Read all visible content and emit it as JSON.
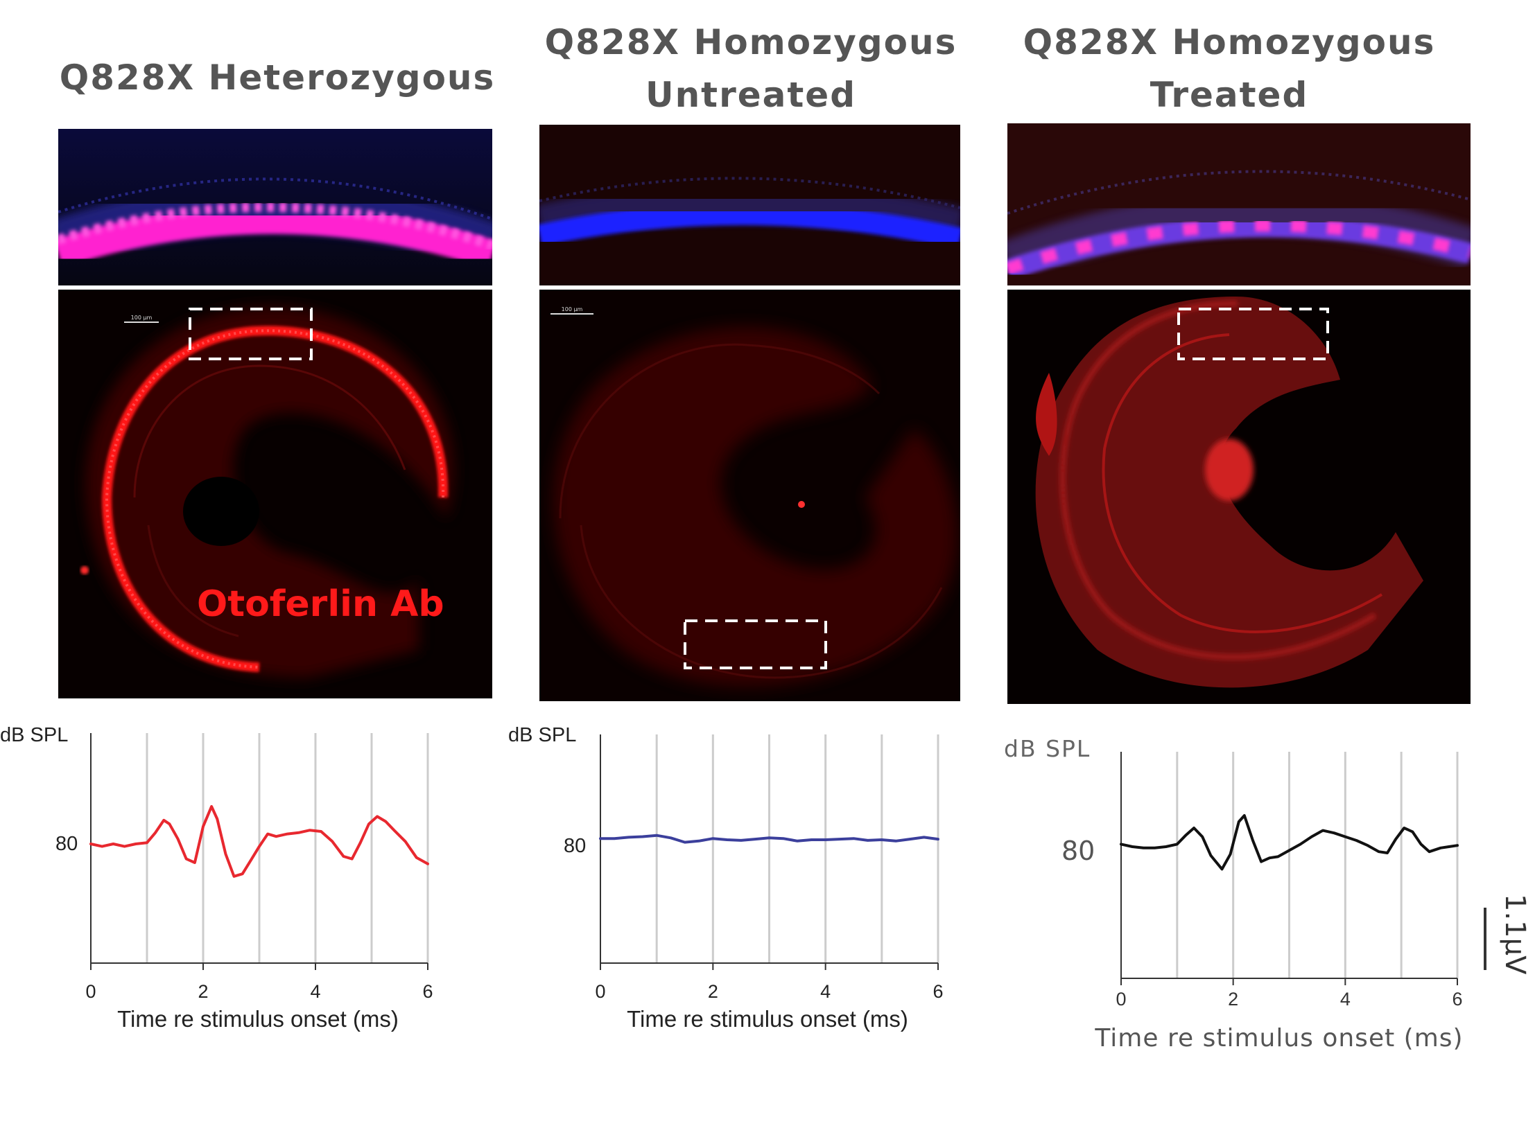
{
  "columns": [
    {
      "title_lines": [
        "Q828X Heterozygous"
      ]
    },
    {
      "title_lines": [
        "Q828X Homozygous",
        "Untreated"
      ]
    },
    {
      "title_lines": [
        "Q828X Homozygous",
        "Treated"
      ]
    }
  ],
  "micrographs": [
    {
      "scale_bar_label": "100 μm",
      "stain_label": "Otoferlin Ab"
    },
    {
      "scale_bar_label": "100 μm"
    },
    {}
  ],
  "colors": {
    "hetero_trace": "#e8282f",
    "untreated_trace": "#3b3f9c",
    "treated_trace": "#111111",
    "stain_label": "#ff1a1a",
    "title_text": "#555555",
    "grid": "#cccccc"
  },
  "scale_label": "1.1μV",
  "chart_data": [
    {
      "type": "line",
      "title": "Q828X Heterozygous ABR",
      "ylabel": "dB SPL",
      "xlabel": "Time re stimulus onset (ms)",
      "xticks": [
        "0",
        "2",
        "4",
        "6"
      ],
      "xlim": [
        0,
        6
      ],
      "level_label": "80",
      "series": [
        {
          "name": "80 dB SPL",
          "x": [
            0,
            0.2,
            0.4,
            0.6,
            0.8,
            1.0,
            1.15,
            1.3,
            1.4,
            1.55,
            1.7,
            1.85,
            2.0,
            2.15,
            2.25,
            2.4,
            2.55,
            2.7,
            2.85,
            3.0,
            3.15,
            3.3,
            3.5,
            3.7,
            3.9,
            4.1,
            4.3,
            4.5,
            4.65,
            4.8,
            4.95,
            5.1,
            5.25,
            5.4,
            5.6,
            5.8,
            6.0
          ],
          "values": [
            0,
            -0.2,
            0,
            -0.2,
            0,
            0.1,
            0.9,
            1.9,
            1.6,
            0.4,
            -1.2,
            -1.5,
            1.4,
            3.0,
            2.0,
            -0.8,
            -2.6,
            -2.4,
            -1.3,
            -0.2,
            0.8,
            0.6,
            0.8,
            0.9,
            1.1,
            1.0,
            0.2,
            -1.0,
            -1.2,
            0.1,
            1.6,
            2.2,
            1.8,
            1.1,
            0.2,
            -1.1,
            -1.6
          ]
        }
      ]
    },
    {
      "type": "line",
      "title": "Q828X Homozygous Untreated ABR",
      "ylabel": "dB SPL",
      "xlabel": "Time re stimulus onset (ms)",
      "xticks": [
        "0",
        "2",
        "4",
        "6"
      ],
      "xlim": [
        0,
        6
      ],
      "level_label": "80",
      "series": [
        {
          "name": "80 dB SPL",
          "x": [
            0,
            0.25,
            0.5,
            0.75,
            1.0,
            1.25,
            1.5,
            1.75,
            2.0,
            2.25,
            2.5,
            2.75,
            3.0,
            3.25,
            3.5,
            3.75,
            4.0,
            4.25,
            4.5,
            4.75,
            5.0,
            5.25,
            5.5,
            5.75,
            6.0
          ],
          "values": [
            0.1,
            0.1,
            0.2,
            0.25,
            0.35,
            0.15,
            -0.2,
            -0.1,
            0.1,
            0.0,
            -0.05,
            0.05,
            0.15,
            0.1,
            -0.1,
            0.0,
            0.0,
            0.05,
            0.1,
            -0.05,
            0.0,
            -0.1,
            0.05,
            0.2,
            0.05
          ]
        }
      ]
    },
    {
      "type": "line",
      "title": "Q828X Homozygous Treated ABR",
      "ylabel": "dB SPL",
      "xlabel": "Time re stimulus onset (ms)",
      "xticks": [
        "0",
        "2",
        "4",
        "6"
      ],
      "xlim": [
        0,
        6
      ],
      "level_label": "80",
      "series": [
        {
          "name": "80 dB SPL",
          "x": [
            0,
            0.2,
            0.4,
            0.6,
            0.8,
            1.0,
            1.15,
            1.3,
            1.45,
            1.6,
            1.8,
            1.95,
            2.1,
            2.2,
            2.35,
            2.5,
            2.65,
            2.8,
            3.0,
            3.2,
            3.4,
            3.6,
            3.8,
            4.0,
            4.2,
            4.4,
            4.6,
            4.75,
            4.9,
            5.05,
            5.2,
            5.35,
            5.5,
            5.7,
            5.85,
            6.0
          ],
          "values": [
            0.2,
            0.0,
            -0.1,
            -0.1,
            0.0,
            0.2,
            0.9,
            1.5,
            0.8,
            -0.7,
            -1.8,
            -0.6,
            2.0,
            2.5,
            0.5,
            -1.2,
            -0.9,
            -0.8,
            -0.3,
            0.2,
            0.8,
            1.3,
            1.1,
            0.8,
            0.5,
            0.1,
            -0.4,
            -0.5,
            0.6,
            1.5,
            1.2,
            0.2,
            -0.4,
            -0.1,
            0.0,
            0.1
          ]
        }
      ]
    }
  ]
}
